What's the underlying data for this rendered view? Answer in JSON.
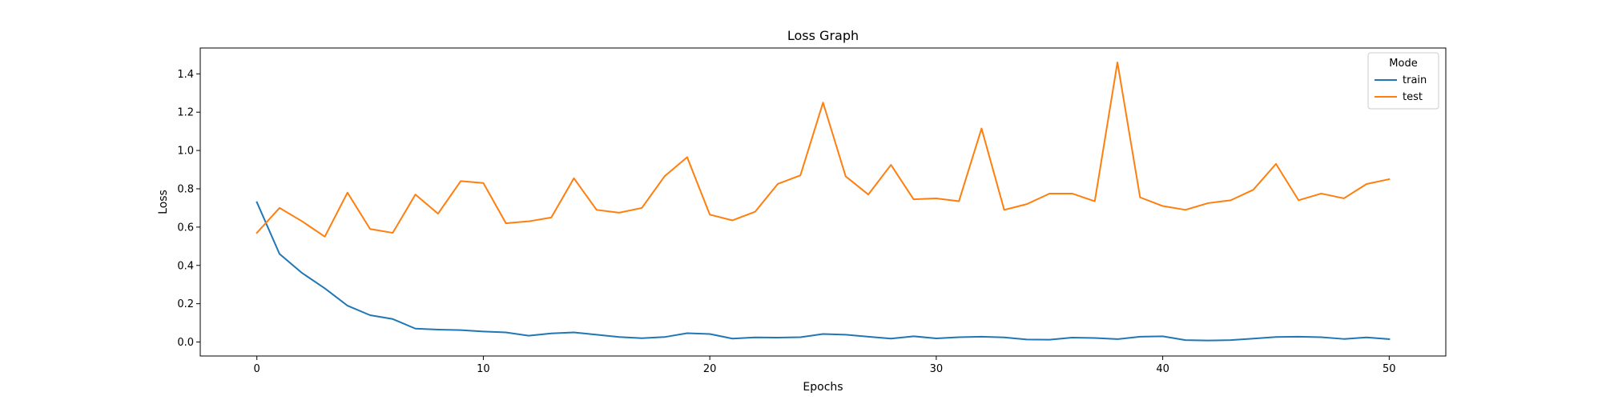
{
  "chart_data": {
    "type": "line",
    "title": "Loss Graph",
    "xlabel": "Epochs",
    "ylabel": "Loss",
    "xlim": [
      -2.5,
      52.5
    ],
    "ylim": [
      -0.073,
      1.535
    ],
    "xticks": [
      0,
      10,
      20,
      30,
      40,
      50
    ],
    "yticks": [
      0.0,
      0.2,
      0.4,
      0.6,
      0.8,
      1.0,
      1.2,
      1.4
    ],
    "xtick_labels": [
      "0",
      "10",
      "20",
      "30",
      "40",
      "50"
    ],
    "ytick_labels": [
      "0.0",
      "0.2",
      "0.4",
      "0.6",
      "0.8",
      "1.0",
      "1.2",
      "1.4"
    ],
    "grid": false,
    "legend": {
      "title": "Mode",
      "position": "top-right"
    },
    "x": [
      0,
      1,
      2,
      3,
      4,
      5,
      6,
      7,
      8,
      9,
      10,
      11,
      12,
      13,
      14,
      15,
      16,
      17,
      18,
      19,
      20,
      21,
      22,
      23,
      24,
      25,
      26,
      27,
      28,
      29,
      30,
      31,
      32,
      33,
      34,
      35,
      36,
      37,
      38,
      39,
      40,
      41,
      42,
      43,
      44,
      45,
      46,
      47,
      48,
      49,
      50
    ],
    "series": [
      {
        "name": "train",
        "color": "#1f77b4",
        "values": [
          0.73,
          0.46,
          0.36,
          0.28,
          0.19,
          0.14,
          0.12,
          0.07,
          0.065,
          0.062,
          0.055,
          0.05,
          0.033,
          0.045,
          0.05,
          0.038,
          0.026,
          0.02,
          0.026,
          0.046,
          0.042,
          0.018,
          0.024,
          0.023,
          0.025,
          0.042,
          0.038,
          0.028,
          0.018,
          0.03,
          0.019,
          0.025,
          0.028,
          0.024,
          0.013,
          0.012,
          0.023,
          0.021,
          0.015,
          0.028,
          0.03,
          0.01,
          0.008,
          0.01,
          0.018,
          0.026,
          0.028,
          0.025,
          0.016,
          0.024,
          0.015
        ]
      },
      {
        "name": "test",
        "color": "#ff7f0e",
        "values": [
          0.57,
          0.7,
          0.63,
          0.55,
          0.78,
          0.59,
          0.57,
          0.77,
          0.67,
          0.84,
          0.83,
          0.62,
          0.63,
          0.65,
          0.855,
          0.69,
          0.675,
          0.7,
          0.865,
          0.965,
          0.665,
          0.635,
          0.68,
          0.825,
          0.87,
          1.25,
          0.865,
          0.77,
          0.925,
          0.745,
          0.75,
          0.735,
          1.115,
          0.69,
          0.72,
          0.775,
          0.775,
          0.735,
          1.46,
          0.755,
          0.71,
          0.69,
          0.725,
          0.74,
          0.795,
          0.93,
          0.74,
          0.775,
          0.75,
          0.825,
          0.85
        ]
      }
    ]
  }
}
